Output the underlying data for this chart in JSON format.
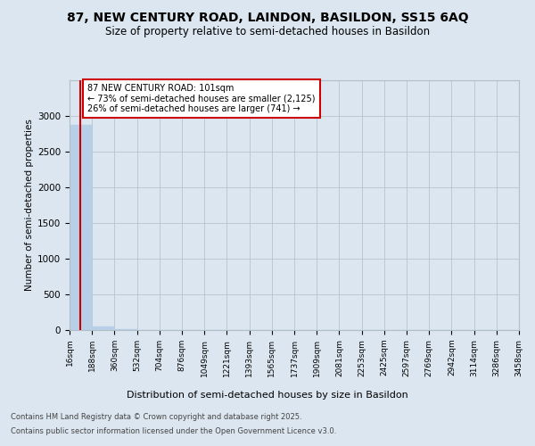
{
  "title": "87, NEW CENTURY ROAD, LAINDON, BASILDON, SS15 6AQ",
  "subtitle": "Size of property relative to semi-detached houses in Basildon",
  "xlabel": "Distribution of semi-detached houses by size in Basildon",
  "ylabel": "Number of semi-detached properties",
  "property_size": 101,
  "annotation_line1": "87 NEW CENTURY ROAD: 101sqm",
  "annotation_line2": "← 73% of semi-detached houses are smaller (2,125)",
  "annotation_line3": "26% of semi-detached houses are larger (741) →",
  "bin_edges": [
    16,
    188,
    360,
    532,
    704,
    876,
    1049,
    1221,
    1393,
    1565,
    1737,
    1909,
    2081,
    2253,
    2425,
    2597,
    2769,
    2942,
    3114,
    3286,
    3458
  ],
  "bin_labels": [
    "16sqm",
    "188sqm",
    "360sqm",
    "532sqm",
    "704sqm",
    "876sqm",
    "1049sqm",
    "1221sqm",
    "1393sqm",
    "1565sqm",
    "1737sqm",
    "1909sqm",
    "2081sqm",
    "2253sqm",
    "2425sqm",
    "2597sqm",
    "2769sqm",
    "2942sqm",
    "3114sqm",
    "3286sqm",
    "3458sqm"
  ],
  "bar_heights": [
    2880,
    50,
    10,
    5,
    3,
    2,
    1,
    1,
    1,
    1,
    1,
    1,
    0,
    0,
    0,
    0,
    0,
    0,
    0,
    0
  ],
  "bar_color": "#b8cfe8",
  "property_line_color": "#cc0000",
  "annotation_box_color": "#cc0000",
  "background_color": "#dce6f0",
  "plot_bg": "#dce6f0",
  "grid_color": "#b0bec5",
  "ylim": [
    0,
    3500
  ],
  "yticks": [
    0,
    500,
    1000,
    1500,
    2000,
    2500,
    3000
  ],
  "footer_line1": "Contains HM Land Registry data © Crown copyright and database right 2025.",
  "footer_line2": "Contains public sector information licensed under the Open Government Licence v3.0."
}
